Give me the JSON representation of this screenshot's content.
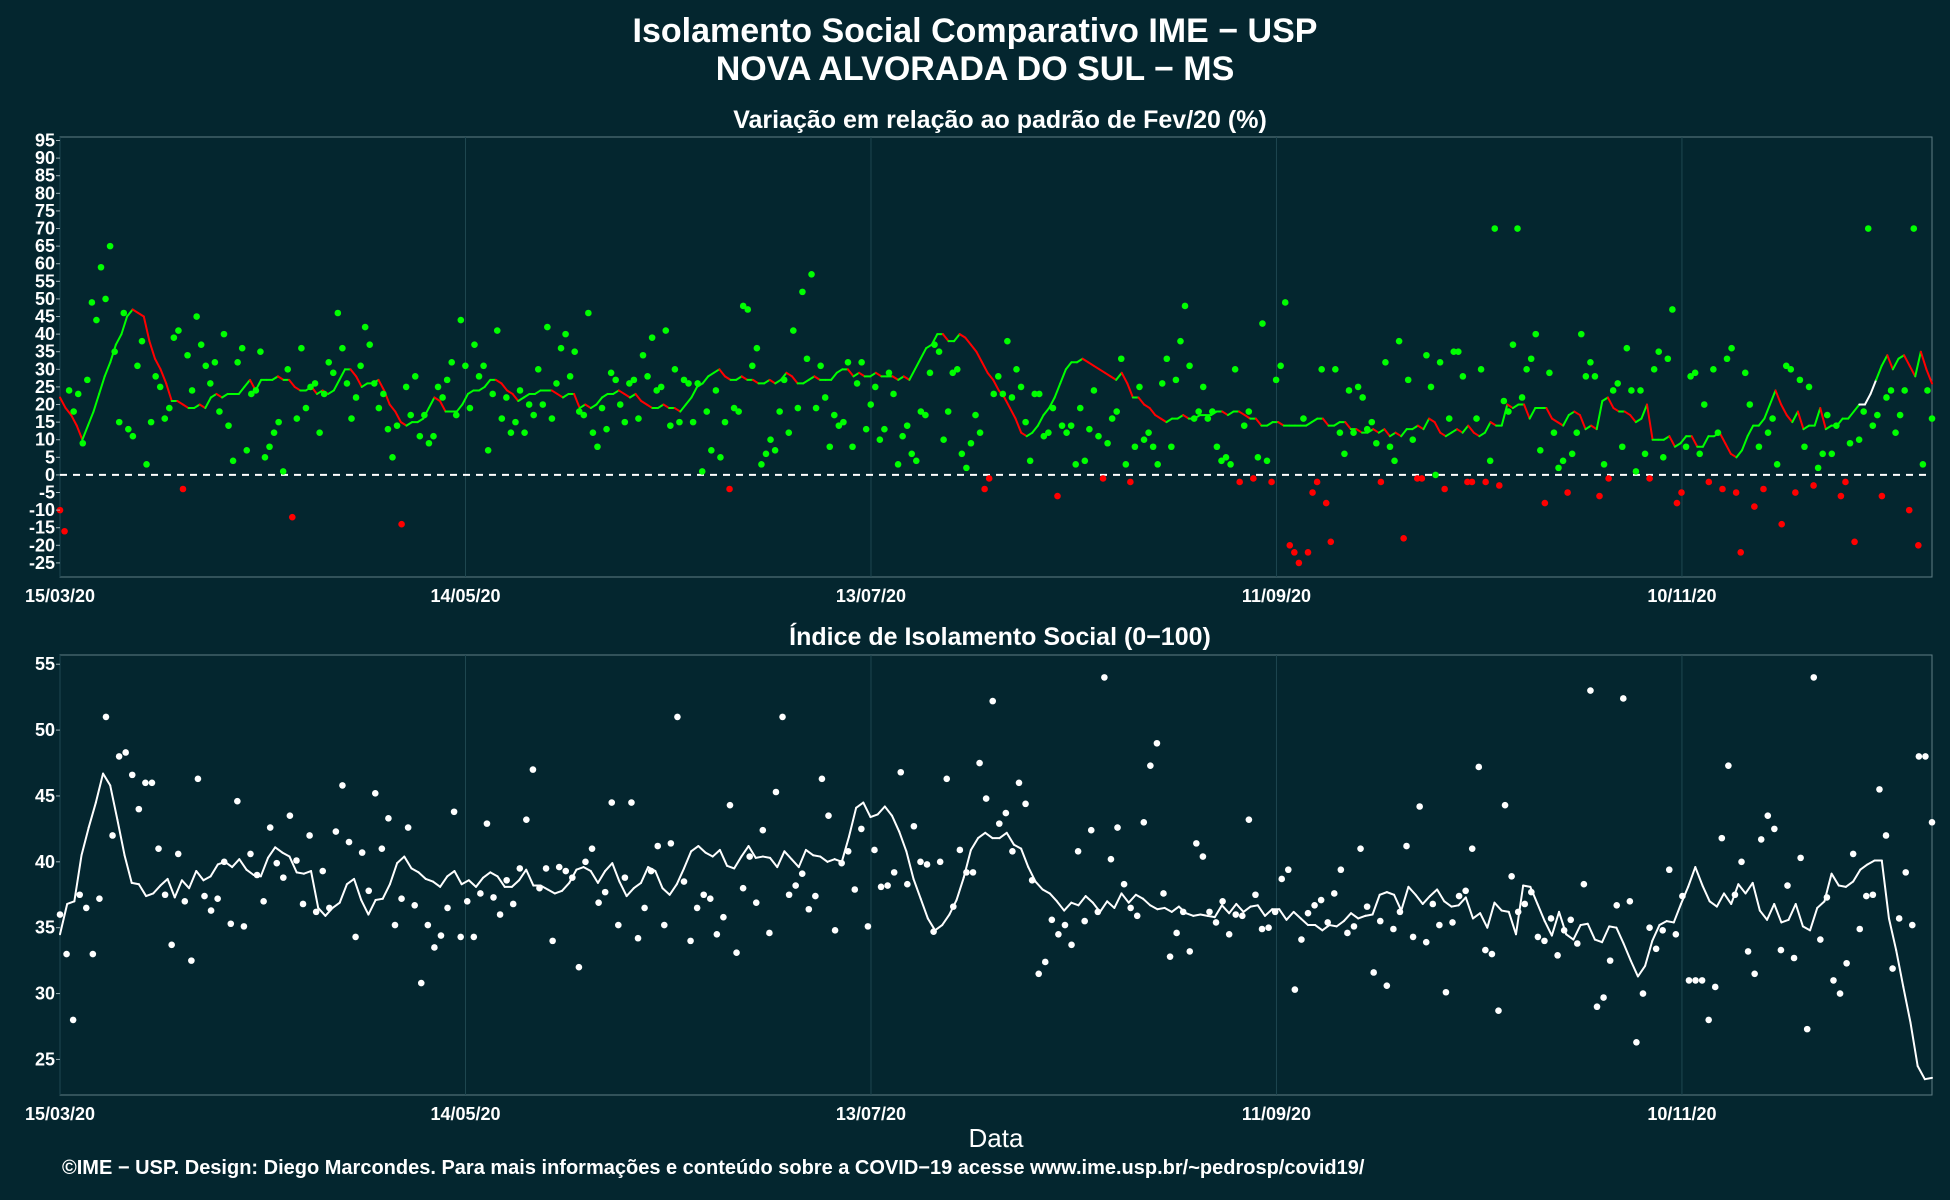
{
  "header": {
    "title_line1": "Isolamento Social Comparativo IME − USP",
    "title_line2": "NOVA ALVORADA DO SUL − MS"
  },
  "footer": {
    "credit": "©IME − USP. Design: Diego Marcondes. Para mais informações e conteúdo sobre a COVID−19 acesse www.ime.usp.br/~pedrosp/covid19/"
  },
  "colors": {
    "background": "#04262f",
    "positive": "#00ff00",
    "negative": "#ff0000",
    "recent": "#ffffff",
    "grid": "#1e4650"
  },
  "chart_data": [
    {
      "type": "scatter",
      "title": "Variação em relação ao padrão de Fev/20 (%)",
      "xlabel": "",
      "ylabel": "",
      "x_start": "15/03/20",
      "x_days": 277,
      "x_ticks": [
        {
          "label": "15/03/20",
          "day": 0
        },
        {
          "label": "14/05/20",
          "day": 60
        },
        {
          "label": "13/07/20",
          "day": 120
        },
        {
          "label": "11/09/20",
          "day": 180
        },
        {
          "label": "10/11/20",
          "day": 240
        }
      ],
      "y_ticks": [
        95,
        90,
        85,
        80,
        75,
        70,
        65,
        60,
        55,
        50,
        45,
        40,
        35,
        30,
        25,
        20,
        15,
        10,
        5,
        0,
        -5,
        -10,
        -15,
        -20,
        -25
      ],
      "ylim": [
        -29,
        96
      ],
      "reference_line": 0,
      "grid": true,
      "points": [
        -10,
        -16,
        24,
        18,
        23,
        9,
        27,
        49,
        44,
        59,
        50,
        65,
        35,
        15,
        46,
        13,
        11,
        31,
        38,
        3,
        15,
        28,
        25,
        16,
        19,
        39,
        41,
        -4,
        34,
        24,
        45,
        37,
        31,
        26,
        32,
        18,
        40,
        14,
        4,
        32,
        36,
        7,
        23,
        24,
        35,
        5,
        8,
        12,
        15,
        1,
        30,
        -12,
        16,
        36,
        19,
        25,
        26,
        12,
        23,
        32,
        29,
        46,
        36,
        26,
        16,
        22,
        31,
        42,
        37,
        26,
        19,
        23,
        13,
        5,
        14,
        -14,
        25,
        17,
        28,
        11,
        17,
        9,
        11,
        25,
        22,
        27,
        32,
        17,
        44,
        31,
        19,
        37,
        28,
        31,
        7,
        23,
        41,
        16,
        22,
        12,
        15,
        24,
        12,
        20,
        17,
        30,
        20,
        42,
        16,
        26,
        36,
        40,
        28,
        35,
        18,
        17,
        46,
        12,
        8,
        19,
        13,
        29,
        27,
        20,
        15,
        26,
        27,
        16,
        34,
        28,
        39,
        24,
        25,
        41,
        14,
        30,
        15,
        27,
        26,
        15,
        26,
        1,
        18,
        7,
        24,
        5,
        15,
        -4,
        19,
        18,
        48,
        47,
        31,
        36,
        3,
        6,
        10,
        7,
        18,
        27,
        12,
        41,
        19,
        52,
        33,
        57,
        19,
        31,
        22,
        8,
        17,
        14,
        15,
        32,
        8,
        26,
        32,
        13,
        20,
        25,
        10,
        13,
        29,
        23,
        3,
        11,
        14,
        6,
        4,
        18,
        17,
        29,
        37,
        35,
        10,
        18,
        29,
        30,
        6,
        2,
        9,
        17,
        12,
        -4,
        -1,
        23,
        28,
        23,
        38,
        22,
        30,
        25,
        15,
        4,
        23,
        23,
        11,
        12,
        19,
        -6,
        14,
        12,
        14,
        3,
        19,
        4,
        13,
        24,
        11,
        -1,
        9,
        16,
        18,
        33,
        3,
        -2,
        8,
        25,
        10,
        12,
        8,
        3,
        26,
        33,
        8,
        27,
        38,
        48,
        31,
        16,
        18,
        25,
        16,
        18,
        8,
        4,
        5,
        3,
        30,
        -2,
        14,
        18,
        -1,
        5,
        43,
        4,
        -2,
        27,
        31,
        49,
        -20,
        -22,
        -25,
        16,
        -22,
        -5,
        -2,
        30,
        -8,
        -19,
        30,
        12,
        6,
        24,
        12,
        25,
        22,
        13,
        15,
        9,
        -2,
        32,
        8,
        4,
        38,
        -18,
        27,
        10,
        -1,
        -1,
        34,
        25,
        0,
        32,
        -4,
        16,
        35,
        35,
        28,
        -2,
        -2,
        16,
        30,
        -2,
        4,
        70,
        -3,
        21,
        18,
        37,
        70,
        22,
        30,
        33,
        40,
        7,
        -8,
        29,
        12,
        2,
        4,
        -5,
        6,
        12,
        40,
        28,
        32,
        28,
        -6,
        3,
        -1,
        24,
        26,
        8,
        36,
        24,
        1,
        24,
        6,
        -1,
        30,
        35,
        5,
        33,
        47,
        -8,
        -5,
        8,
        28,
        29,
        6,
        20,
        -2,
        30,
        12,
        -4,
        33,
        36,
        -5,
        -22,
        29,
        20,
        -9,
        8,
        -4,
        12,
        16,
        3,
        -14,
        31,
        30,
        -5,
        27,
        8,
        25,
        -3,
        2,
        6,
        17,
        6,
        14,
        -6,
        -2,
        9,
        -19,
        10,
        18,
        70,
        14,
        17,
        -6,
        22,
        24,
        12,
        17,
        24,
        -10,
        70,
        -20,
        3,
        24,
        16
      ],
      "trend": [
        22,
        19,
        17,
        14,
        10,
        14,
        18,
        23,
        28,
        32,
        37,
        40,
        45,
        47,
        46,
        45,
        38,
        33,
        30,
        26,
        21,
        21,
        20,
        19,
        19,
        20,
        19,
        22,
        23,
        22,
        23,
        23,
        23,
        25,
        27,
        24,
        27,
        27,
        27,
        28,
        27,
        27,
        25,
        24,
        24,
        25,
        23,
        24,
        23,
        24,
        27,
        30,
        30,
        28,
        25,
        26,
        26,
        27,
        24,
        20,
        18,
        15,
        14,
        15,
        15,
        16,
        19,
        22,
        21,
        18,
        18,
        18,
        20,
        23,
        24,
        24,
        25,
        27,
        27,
        26,
        24,
        23,
        21,
        22,
        23,
        23,
        24,
        24,
        24,
        23,
        22,
        23,
        23,
        19,
        20,
        19,
        20,
        22,
        23,
        23,
        24,
        23,
        22,
        23,
        21,
        20,
        19,
        19,
        20,
        19,
        19,
        18,
        20,
        22,
        25,
        26,
        28,
        29,
        30,
        28,
        27,
        27,
        28,
        27,
        27,
        26,
        26,
        27,
        26,
        27,
        29,
        28,
        26,
        26,
        27,
        28,
        27,
        27,
        27,
        29,
        30,
        30,
        28,
        29,
        28,
        28,
        29,
        28,
        28,
        28,
        27,
        28,
        27,
        30,
        33,
        36,
        37,
        40,
        40,
        38,
        38,
        40,
        39,
        37,
        35,
        32,
        29,
        27,
        24,
        22,
        19,
        16,
        12,
        11,
        12,
        14,
        17,
        19,
        22,
        26,
        30,
        32,
        32,
        33,
        32,
        31,
        30,
        29,
        28,
        27,
        29,
        26,
        22,
        22,
        20,
        19,
        17,
        16,
        15,
        16,
        16,
        17,
        16,
        16,
        17,
        17,
        17,
        18,
        18,
        17,
        18,
        18,
        17,
        16,
        16,
        14,
        14,
        15,
        15,
        14,
        14,
        14,
        14,
        14,
        15,
        16,
        16,
        14,
        14,
        15,
        15,
        13,
        13,
        12,
        12,
        13,
        12,
        13,
        11,
        12,
        11,
        13,
        13,
        14,
        13,
        16,
        15,
        12,
        11,
        12,
        13,
        12,
        14,
        12,
        11,
        12,
        15,
        14,
        14,
        20,
        19,
        20,
        20,
        16,
        19,
        19,
        19,
        16,
        15,
        14,
        17,
        18,
        17,
        13,
        14,
        13,
        21,
        22,
        19,
        18,
        18,
        17,
        15,
        16,
        20,
        10,
        10,
        10,
        11,
        8,
        9,
        11,
        11,
        8,
        8,
        11,
        11,
        12,
        9,
        6,
        5,
        7,
        11,
        14,
        14,
        16,
        20,
        24,
        20,
        17,
        15,
        18,
        13,
        14,
        14,
        19,
        13,
        14,
        14,
        16,
        16,
        18,
        20,
        20,
        23,
        27,
        31,
        34,
        30,
        33,
        34,
        31,
        28,
        35,
        30,
        26
      ]
    },
    {
      "type": "scatter",
      "title": "Índice de Isolamento Social (0−100)",
      "xlabel": "Data",
      "ylabel": "",
      "x_start": "15/03/20",
      "x_days": 277,
      "x_ticks": [
        {
          "label": "15/03/20",
          "day": 0
        },
        {
          "label": "14/05/20",
          "day": 60
        },
        {
          "label": "13/07/20",
          "day": 120
        },
        {
          "label": "11/09/20",
          "day": 180
        },
        {
          "label": "10/11/20",
          "day": 240
        }
      ],
      "y_ticks": [
        55,
        50,
        45,
        40,
        35,
        30,
        25
      ],
      "ylim": [
        22.3,
        55.7
      ],
      "grid": true,
      "points": [
        36,
        33,
        28,
        37.5,
        36.5,
        33,
        37.2,
        51,
        42,
        48,
        48.3,
        46.6,
        44,
        46,
        46,
        41,
        37.5,
        33.7,
        40.6,
        37,
        32.5,
        46.3,
        37.4,
        36.3,
        37.2,
        40,
        35.3,
        44.6,
        35.1,
        40.6,
        39,
        37,
        42.6,
        39.9,
        38.8,
        43.5,
        40.1,
        36.8,
        42,
        36.2,
        39.3,
        36.5,
        42.3,
        45.8,
        41.5,
        34.3,
        40.7,
        37.8,
        45.2,
        41,
        43.3,
        35.2,
        37.2,
        42.6,
        36.7,
        30.8,
        35.2,
        33.5,
        34.4,
        36.5,
        43.8,
        34.3,
        37,
        34.3,
        37.6,
        42.9,
        37.3,
        36,
        38.6,
        36.8,
        39.5,
        43.2,
        47,
        38,
        39.5,
        34,
        39.6,
        39.3,
        38.8,
        32,
        40,
        41,
        36.9,
        37.7,
        44.5,
        35.2,
        38.8,
        44.5,
        34.2,
        36.5,
        39.3,
        41.2,
        35.2,
        41.4,
        51,
        38.5,
        34,
        36.5,
        37.5,
        37.2,
        34.5,
        35.8,
        44.3,
        33.1,
        38,
        40.4,
        36.9,
        42.4,
        34.6,
        45.3,
        51,
        37.5,
        38.2,
        39.1,
        36.4,
        37.4,
        46.3,
        43.5,
        34.8,
        39.9,
        40.8,
        37.9,
        42.5,
        35.1,
        40.9,
        38.1,
        38.2,
        39.2,
        46.8,
        38.3,
        42.7,
        40,
        39.8,
        34.7,
        40,
        46.3,
        36.6,
        40.9,
        39.2,
        39.2,
        47.5,
        44.8,
        52.2,
        42.9,
        43.7,
        40.8,
        46,
        44.4,
        38.6,
        31.5,
        32.4,
        35.6,
        34.5,
        35.2,
        33.7,
        40.8,
        35.5,
        42.4,
        36.2,
        54,
        40.2,
        42.6,
        38.3,
        36.5,
        35.9,
        43,
        47.3,
        49,
        37.6,
        32.8,
        34.6,
        36.2,
        33.2,
        41.4,
        40.4,
        36.2,
        35.4,
        37,
        34.5,
        36,
        35.9,
        43.2,
        37.5,
        34.9,
        35,
        36.2,
        38.7,
        39.4,
        30.3,
        34.1,
        36.1,
        36.7,
        37.1,
        35.4,
        37.6,
        39.4,
        34.6,
        35.1,
        41,
        36.6,
        31.6,
        35.5,
        30.6,
        34.9,
        36.2,
        41.2,
        34.3,
        44.2,
        33.9,
        36.8,
        35.2,
        30.1,
        35.4,
        37.4,
        37.8,
        41,
        47.2,
        33.3,
        33,
        28.7,
        44.3,
        38.9,
        36.2,
        36.8,
        37.7,
        34.3,
        34,
        35.7,
        32.9,
        34.8,
        35.6,
        33.8,
        38.3,
        53,
        29,
        29.7,
        32.5,
        36.7,
        52.4,
        37,
        26.3,
        30,
        35,
        33.4,
        34.8,
        39.4,
        34.5,
        37.4,
        31,
        31,
        31,
        28,
        30.5,
        41.8,
        47.3,
        37.5,
        40,
        33.2,
        31.5,
        41.7,
        43.5,
        42.5,
        33.3,
        38.2,
        32.7,
        40.3,
        27.3,
        54,
        34.1,
        37.3,
        31,
        30,
        32.3,
        40.6,
        34.9,
        37.4,
        37.5,
        45.5,
        42,
        31.9,
        35.7,
        39.2,
        35.2,
        48,
        48,
        43
      ],
      "trend": [
        34.5,
        36.8,
        37,
        40.5,
        42.6,
        44.5,
        46.7,
        45.8,
        43.2,
        40.5,
        38.4,
        38.3,
        37.4,
        37.6,
        38.2,
        38.7,
        37.3,
        38.6,
        38,
        39.3,
        38.6,
        38.9,
        39.8,
        40,
        39.6,
        40.2,
        39.4,
        39,
        38.9,
        40.3,
        41.1,
        40.7,
        40.4,
        39.2,
        39.1,
        39.3,
        36.5,
        35.9,
        36.5,
        36.9,
        38.3,
        38.7,
        37.1,
        36,
        37.1,
        37.2,
        38.3,
        39.9,
        40.4,
        39.5,
        39.2,
        38.7,
        38.5,
        38.1,
        38.9,
        39.3,
        38.3,
        38.6,
        38.1,
        38.8,
        39.2,
        38.9,
        38.1,
        38.1,
        38.6,
        39.4,
        38.2,
        38.2,
        37.9,
        37.6,
        37.8,
        38.4,
        39.4,
        39.6,
        39.3,
        38.4,
        39.3,
        39.9,
        38.5,
        37.4,
        38,
        38.4,
        39.6,
        39.3,
        38,
        37.5,
        38.3,
        39.5,
        40.8,
        41.2,
        40.7,
        40.4,
        40.9,
        39.7,
        39.5,
        40.4,
        41.2,
        40.3,
        40.4,
        40.3,
        39.6,
        40.8,
        40.2,
        39.6,
        40.9,
        40.5,
        40.4,
        40,
        40.2,
        40,
        41.9,
        44.1,
        44.5,
        43.4,
        43.6,
        44.2,
        43.5,
        42.3,
        40.8,
        38.7,
        37.2,
        35.7,
        34.8,
        35.2,
        36,
        37.1,
        38.8,
        40.9,
        41.8,
        42.2,
        41.8,
        41.8,
        42.2,
        41.3,
        41,
        39.6,
        38.5,
        37.9,
        37.6,
        37,
        36.3,
        36.9,
        36.7,
        37.4,
        36.9,
        36.2,
        37,
        36.5,
        37.6,
        36.9,
        37.5,
        37.2,
        36.7,
        36.4,
        36.5,
        36.2,
        36.6,
        36.1,
        35.9,
        36,
        35.9,
        35.8,
        36.7,
        36.1,
        36.8,
        36.2,
        36.6,
        36.7,
        35.9,
        36.4,
        36.4,
        35.6,
        36.2,
        35.7,
        35.2,
        35.2,
        34.8,
        35.2,
        35.1,
        35.5,
        36.1,
        35.7,
        35.9,
        36,
        37.5,
        37.7,
        37.5,
        36.3,
        38.1,
        37.5,
        36.8,
        37.4,
        37.9,
        37,
        36.6,
        36.7,
        37.3,
        35.7,
        36.1,
        35,
        36.9,
        36.3,
        36.2,
        34.5,
        38.2,
        38.1,
        36.8,
        35.5,
        34.4,
        36.2,
        34.5,
        34.1,
        35.2,
        35.3,
        34.1,
        33.9,
        35.1,
        35,
        33.8,
        32.5,
        31.3,
        32.1,
        34,
        35.2,
        35.5,
        35.4,
        36.8,
        38.1,
        39.6,
        38.2,
        37,
        36.6,
        37.6,
        36.8,
        38.3,
        37.6,
        38.4,
        36.3,
        35.6,
        36.8,
        35.4,
        35.6,
        36.8,
        35.1,
        34.8,
        36.5,
        37,
        39.1,
        38.2,
        38.1,
        38.5,
        39.4,
        39.8,
        40.1,
        40.1,
        35.7,
        33.3,
        30.5,
        27.8,
        24.5,
        23.5,
        23.6
      ]
    }
  ]
}
